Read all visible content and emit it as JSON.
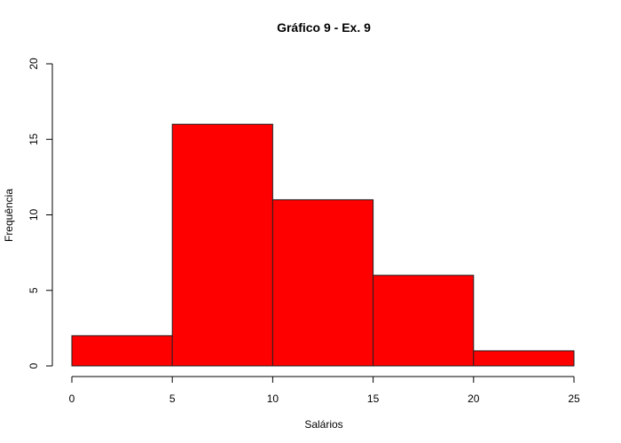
{
  "chart_data": {
    "type": "bar",
    "subtype": "histogram",
    "title": "Gráfico 9 - Ex. 9",
    "xlabel": "Salários",
    "ylabel": "Frequência",
    "bins": [
      [
        0,
        5
      ],
      [
        5,
        10
      ],
      [
        10,
        15
      ],
      [
        15,
        20
      ],
      [
        20,
        25
      ]
    ],
    "values": [
      2,
      16,
      11,
      6,
      1
    ],
    "xlim": [
      0,
      25
    ],
    "ylim": [
      0,
      20
    ],
    "x_ticks": [
      0,
      5,
      10,
      15,
      20,
      25
    ],
    "y_ticks": [
      0,
      5,
      10,
      15,
      20
    ],
    "bar_color": "#ff0000",
    "grid": false,
    "legend": "none"
  }
}
